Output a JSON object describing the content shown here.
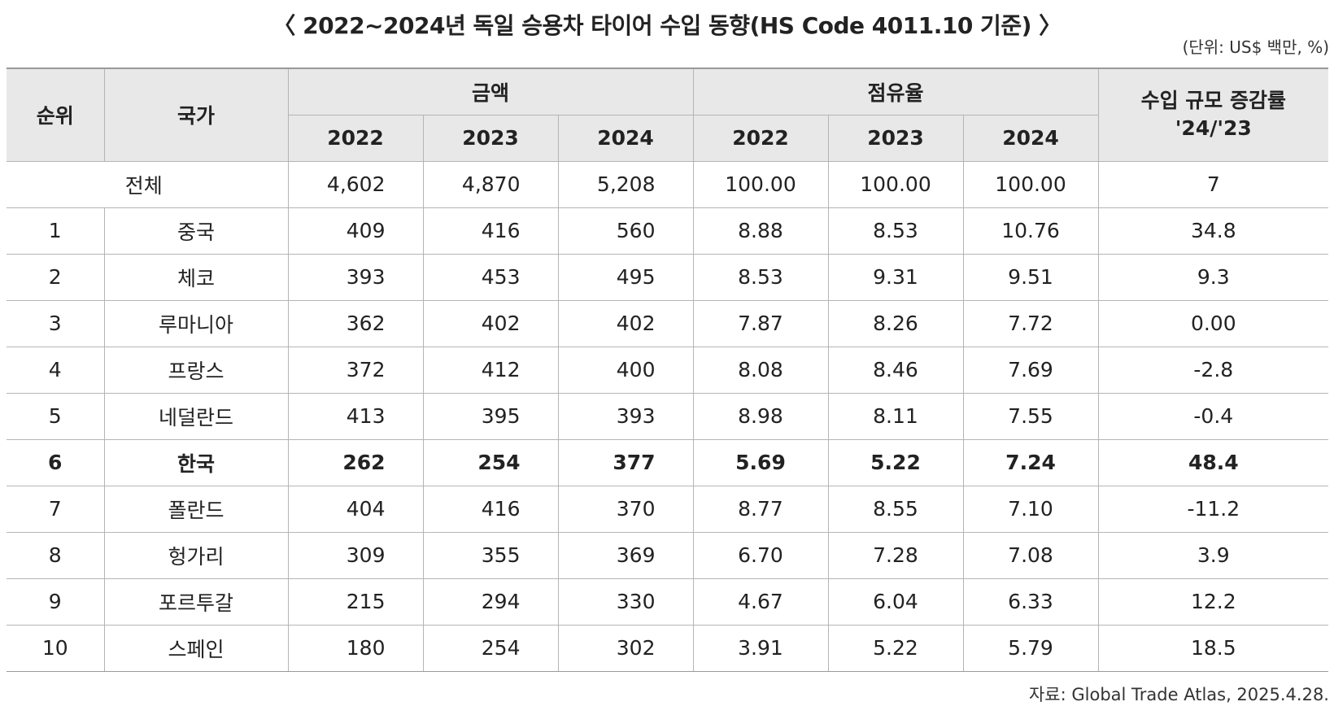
{
  "title": "〈 2022~2024년 독일 승용차 타이어 수입 동향(HS Code 4011.10 기준) 〉",
  "unit": "(단위: US$ 백만, %)",
  "headers": {
    "rank": "순위",
    "country": "국가",
    "amount": "금액",
    "share": "점유율",
    "growth_line1": "수입 규모 증감률",
    "growth_line2": "'24/'23",
    "years": [
      "2022",
      "2023",
      "2024"
    ]
  },
  "total": {
    "label": "전체",
    "amount": [
      "4,602",
      "4,870",
      "5,208"
    ],
    "share": [
      "100.00",
      "100.00",
      "100.00"
    ],
    "growth": "7"
  },
  "rows": [
    {
      "rank": "1",
      "country": "중국",
      "amount": [
        "409",
        "416",
        "560"
      ],
      "share": [
        "8.88",
        "8.53",
        "10.76"
      ],
      "growth": "34.8"
    },
    {
      "rank": "2",
      "country": "체코",
      "amount": [
        "393",
        "453",
        "495"
      ],
      "share": [
        "8.53",
        "9.31",
        "9.51"
      ],
      "growth": "9.3"
    },
    {
      "rank": "3",
      "country": "루마니아",
      "amount": [
        "362",
        "402",
        "402"
      ],
      "share": [
        "7.87",
        "8.26",
        "7.72"
      ],
      "growth": "0.00"
    },
    {
      "rank": "4",
      "country": "프랑스",
      "amount": [
        "372",
        "412",
        "400"
      ],
      "share": [
        "8.08",
        "8.46",
        "7.69"
      ],
      "growth": "-2.8"
    },
    {
      "rank": "5",
      "country": "네덜란드",
      "amount": [
        "413",
        "395",
        "393"
      ],
      "share": [
        "8.98",
        "8.11",
        "7.55"
      ],
      "growth": "-0.4"
    },
    {
      "rank": "6",
      "country": "한국",
      "amount": [
        "262",
        "254",
        "377"
      ],
      "share": [
        "5.69",
        "5.22",
        "7.24"
      ],
      "growth": "48.4"
    },
    {
      "rank": "7",
      "country": "폴란드",
      "amount": [
        "404",
        "416",
        "370"
      ],
      "share": [
        "8.77",
        "8.55",
        "7.10"
      ],
      "growth": "-11.2"
    },
    {
      "rank": "8",
      "country": "헝가리",
      "amount": [
        "309",
        "355",
        "369"
      ],
      "share": [
        "6.70",
        "7.28",
        "7.08"
      ],
      "growth": "3.9"
    },
    {
      "rank": "9",
      "country": "포르투갈",
      "amount": [
        "215",
        "294",
        "330"
      ],
      "share": [
        "4.67",
        "6.04",
        "6.33"
      ],
      "growth": "12.2"
    },
    {
      "rank": "10",
      "country": "스페인",
      "amount": [
        "180",
        "254",
        "302"
      ],
      "share": [
        "3.91",
        "5.22",
        "5.79"
      ],
      "growth": "18.5"
    }
  ],
  "source": "자료: Global Trade Atlas, 2025.4.28."
}
